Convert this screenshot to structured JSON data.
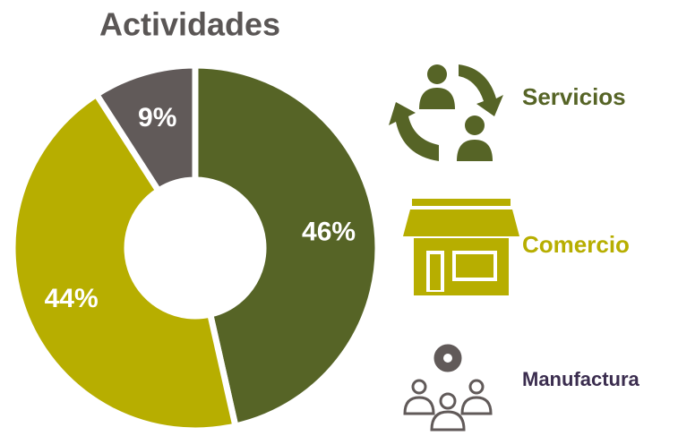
{
  "chart_data": {
    "type": "donut",
    "title": "Actividades",
    "categories": [
      "Servicios",
      "Comercio",
      "Manufactura"
    ],
    "values": [
      46,
      44,
      9
    ],
    "value_labels": [
      "46%",
      "44%",
      "9%"
    ],
    "colors": [
      "#566426",
      "#b7ae00",
      "#615a59"
    ]
  }
}
